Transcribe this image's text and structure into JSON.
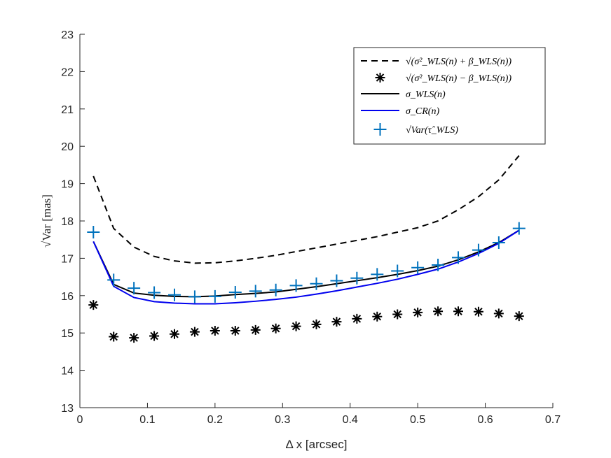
{
  "chart_data": {
    "type": "line",
    "title": "",
    "xlabel": "Δ x [arcsec]",
    "ylabel": "√Var [mas]",
    "xlim": [
      0,
      0.7
    ],
    "ylim": [
      13,
      23
    ],
    "xticks": [
      "0",
      "0.1",
      "0.2",
      "0.3",
      "0.4",
      "0.5",
      "0.6",
      "0.7"
    ],
    "yticks": [
      "13",
      "14",
      "15",
      "16",
      "17",
      "18",
      "19",
      "20",
      "21",
      "22",
      "23"
    ],
    "grid": false,
    "legend_position": "top-right",
    "x": [
      0.02,
      0.05,
      0.08,
      0.11,
      0.14,
      0.17,
      0.2,
      0.23,
      0.26,
      0.29,
      0.32,
      0.35,
      0.38,
      0.41,
      0.44,
      0.47,
      0.5,
      0.53,
      0.56,
      0.59,
      0.62,
      0.65
    ],
    "series": [
      {
        "name": "√(σ²_WLS(n) + β_WLS(n))",
        "style": "dashed-line",
        "color": "#000000",
        "values": [
          19.2,
          17.8,
          17.3,
          17.05,
          16.93,
          16.87,
          16.88,
          16.93,
          17.0,
          17.08,
          17.18,
          17.28,
          17.38,
          17.48,
          17.58,
          17.7,
          17.82,
          18.0,
          18.3,
          18.65,
          19.1,
          19.75
        ]
      },
      {
        "name": "√(σ²_WLS(n) − β_WLS(n))",
        "style": "asterisk-markers",
        "color": "#000000",
        "values": [
          15.75,
          14.9,
          14.87,
          14.92,
          14.97,
          15.03,
          15.06,
          15.06,
          15.08,
          15.12,
          15.18,
          15.23,
          15.3,
          15.38,
          15.44,
          15.5,
          15.55,
          15.58,
          15.58,
          15.57,
          15.52,
          15.45
        ]
      },
      {
        "name": "σ_WLS(n)",
        "style": "solid-line",
        "color": "#000000",
        "values": [
          17.45,
          16.3,
          16.07,
          16.01,
          15.98,
          15.97,
          15.99,
          16.03,
          16.06,
          16.1,
          16.17,
          16.24,
          16.32,
          16.4,
          16.48,
          16.57,
          16.67,
          16.79,
          16.96,
          17.17,
          17.42,
          17.75
        ]
      },
      {
        "name": "σ_CR(n)",
        "style": "solid-line",
        "color": "#0000ee",
        "values": [
          17.45,
          16.25,
          15.95,
          15.84,
          15.8,
          15.78,
          15.78,
          15.81,
          15.85,
          15.9,
          15.96,
          16.04,
          16.13,
          16.23,
          16.33,
          16.44,
          16.57,
          16.71,
          16.9,
          17.13,
          17.4,
          17.75
        ]
      },
      {
        "name": "√Var(τ̂_WLS)",
        "style": "plus-markers",
        "color": "#0072bd",
        "values": [
          17.7,
          16.42,
          16.2,
          16.08,
          16.02,
          15.97,
          15.98,
          16.09,
          16.12,
          16.15,
          16.27,
          16.32,
          16.4,
          16.47,
          16.57,
          16.66,
          16.75,
          16.82,
          17.02,
          17.22,
          17.42,
          17.8
        ]
      }
    ]
  }
}
